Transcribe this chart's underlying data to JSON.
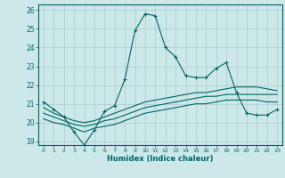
{
  "xlabel": "Humidex (Indice chaleur)",
  "ylabel": "",
  "bg_color": "#cce8e8",
  "line_color": "#006666",
  "grid_color": "#aacccc",
  "xlim": [
    -0.5,
    23.5
  ],
  "ylim": [
    18.8,
    26.3
  ],
  "xticks": [
    0,
    1,
    2,
    3,
    4,
    5,
    6,
    7,
    8,
    9,
    10,
    11,
    12,
    13,
    14,
    15,
    16,
    17,
    18,
    19,
    20,
    21,
    22,
    23
  ],
  "yticks": [
    19,
    20,
    21,
    22,
    23,
    24,
    25,
    26
  ],
  "line1_x": [
    0,
    1,
    2,
    3,
    4,
    5,
    6,
    7,
    8,
    9,
    10,
    11,
    12,
    13,
    14,
    15,
    16,
    17,
    18,
    19,
    20,
    21,
    22,
    23
  ],
  "line1_y": [
    21.1,
    20.7,
    20.3,
    19.5,
    18.8,
    19.6,
    20.6,
    20.9,
    22.3,
    24.9,
    25.8,
    25.7,
    24.0,
    23.5,
    22.5,
    22.4,
    22.4,
    22.9,
    23.2,
    21.6,
    20.5,
    20.4,
    20.4,
    20.7
  ],
  "line2_x": [
    0,
    1,
    2,
    3,
    4,
    5,
    6,
    7,
    8,
    9,
    10,
    11,
    12,
    13,
    14,
    15,
    16,
    17,
    18,
    19,
    20,
    21,
    22,
    23
  ],
  "line2_y": [
    20.8,
    20.5,
    20.3,
    20.1,
    20.0,
    20.1,
    20.3,
    20.5,
    20.7,
    20.9,
    21.1,
    21.2,
    21.3,
    21.4,
    21.5,
    21.6,
    21.6,
    21.7,
    21.8,
    21.9,
    21.9,
    21.9,
    21.8,
    21.7
  ],
  "line3_x": [
    0,
    1,
    2,
    3,
    4,
    5,
    6,
    7,
    8,
    9,
    10,
    11,
    12,
    13,
    14,
    15,
    16,
    17,
    18,
    19,
    20,
    21,
    22,
    23
  ],
  "line3_y": [
    20.5,
    20.3,
    20.1,
    19.9,
    19.8,
    19.9,
    20.1,
    20.2,
    20.4,
    20.6,
    20.8,
    20.9,
    21.0,
    21.1,
    21.2,
    21.3,
    21.4,
    21.4,
    21.5,
    21.5,
    21.5,
    21.5,
    21.5,
    21.5
  ],
  "line4_x": [
    0,
    1,
    2,
    3,
    4,
    5,
    6,
    7,
    8,
    9,
    10,
    11,
    12,
    13,
    14,
    15,
    16,
    17,
    18,
    19,
    20,
    21,
    22,
    23
  ],
  "line4_y": [
    20.2,
    20.0,
    19.9,
    19.7,
    19.5,
    19.7,
    19.8,
    19.9,
    20.1,
    20.3,
    20.5,
    20.6,
    20.7,
    20.8,
    20.9,
    21.0,
    21.0,
    21.1,
    21.2,
    21.2,
    21.2,
    21.2,
    21.1,
    21.1
  ]
}
